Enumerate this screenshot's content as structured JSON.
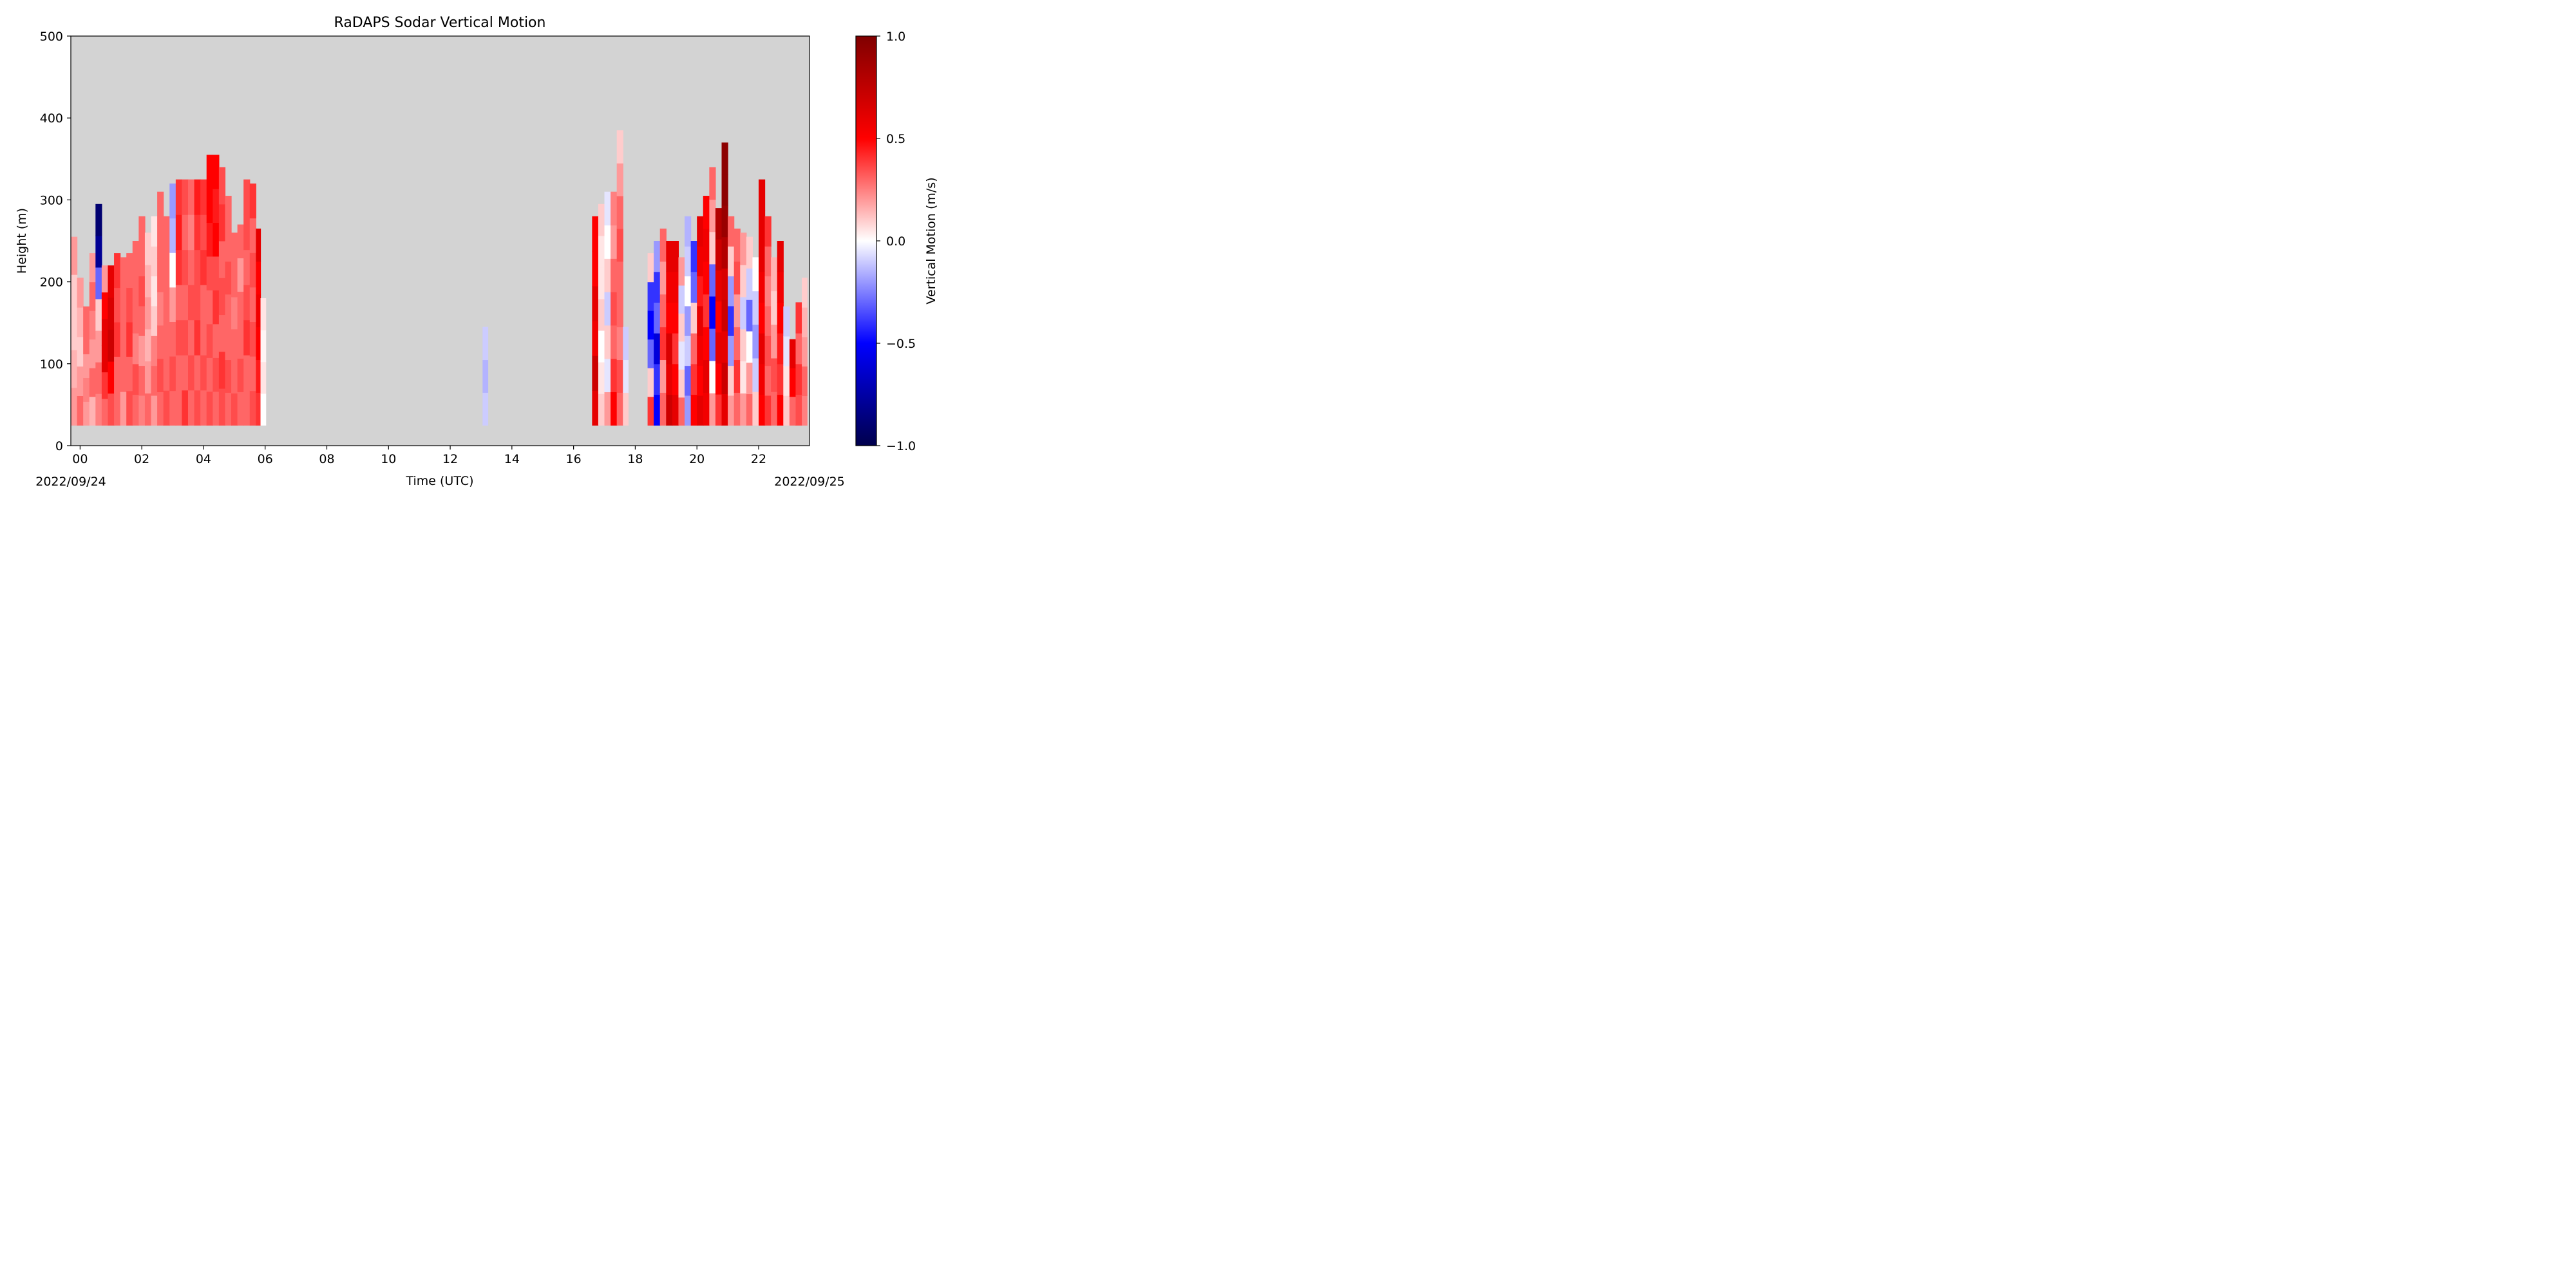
{
  "chart_data": {
    "type": "heatmap",
    "title": "RaDAPS Sodar Vertical Motion",
    "xlabel": "Time (UTC)",
    "ylabel": "Height (m)",
    "xlim_hours": [
      -0.3,
      23.65
    ],
    "ylim": [
      0,
      500
    ],
    "x_ticks": [
      {
        "value": 0,
        "label": "00"
      },
      {
        "value": 2,
        "label": "02"
      },
      {
        "value": 4,
        "label": "04"
      },
      {
        "value": 6,
        "label": "06"
      },
      {
        "value": 8,
        "label": "08"
      },
      {
        "value": 10,
        "label": "10"
      },
      {
        "value": 12,
        "label": "12"
      },
      {
        "value": 14,
        "label": "14"
      },
      {
        "value": 16,
        "label": "16"
      },
      {
        "value": 18,
        "label": "18"
      },
      {
        "value": 20,
        "label": "20"
      },
      {
        "value": 22,
        "label": "22"
      }
    ],
    "y_ticks": [
      0,
      100,
      200,
      300,
      400,
      500
    ],
    "date_labels": {
      "start": "2022/09/24",
      "end": "2022/09/25"
    },
    "background_color": "#d3d3d3",
    "colormap": "seismic",
    "colorbar": {
      "label": "Vertical Motion (m/s)",
      "min": -1.0,
      "max": 1.0,
      "ticks": [
        {
          "value": -1.0,
          "label": "−1.0"
        },
        {
          "value": -0.5,
          "label": "−0.5"
        },
        {
          "value": 0.0,
          "label": "0.0"
        },
        {
          "value": 0.5,
          "label": "0.5"
        },
        {
          "value": 1.0,
          "label": "1.0"
        }
      ]
    },
    "columns": [
      {
        "t": -0.3,
        "top": 255,
        "v": [
          0.2,
          0.15,
          0.1,
          0.1,
          0.2
        ]
      },
      {
        "t": -0.1,
        "top": 205,
        "v": [
          0.3,
          0.2,
          0.1,
          0.15,
          0.2
        ]
      },
      {
        "t": 0.1,
        "top": 170,
        "v": [
          0.2,
          0.25,
          0.2,
          0.3,
          0.3
        ]
      },
      {
        "t": 0.3,
        "top": 235,
        "v": [
          0.15,
          0.3,
          0.2,
          0.25,
          0.3,
          0.2
        ]
      },
      {
        "t": 0.5,
        "top": 295,
        "v": [
          0.25,
          0.3,
          0.2,
          0.1,
          -0.3,
          -0.8,
          -0.9
        ]
      },
      {
        "t": 0.7,
        "top": 220,
        "v": [
          0.3,
          0.4,
          0.6,
          0.6,
          0.5,
          0.2
        ]
      },
      {
        "t": 0.9,
        "top": 220,
        "v": [
          0.35,
          0.5,
          0.7,
          0.65,
          0.6
        ]
      },
      {
        "t": 1.1,
        "top": 235,
        "v": [
          0.3,
          0.3,
          0.4,
          0.35,
          0.4
        ]
      },
      {
        "t": 1.3,
        "top": 230,
        "v": [
          0.2,
          0.3,
          0.3,
          0.3,
          0.3
        ]
      },
      {
        "t": 1.5,
        "top": 235,
        "v": [
          0.35,
          0.3,
          0.4,
          0.35,
          0.3
        ]
      },
      {
        "t": 1.7,
        "top": 250,
        "v": [
          0.3,
          0.35,
          0.25,
          0.3,
          0.3,
          0.3
        ]
      },
      {
        "t": 1.9,
        "top": 280,
        "v": [
          0.25,
          0.3,
          0.2,
          0.3,
          0.35,
          0.3,
          0.3
        ]
      },
      {
        "t": 2.1,
        "top": 260,
        "v": [
          0.3,
          0.2,
          0.15,
          0.2,
          0.15,
          0.1
        ]
      },
      {
        "t": 2.3,
        "top": 280,
        "v": [
          0.2,
          0.3,
          0.25,
          0.1,
          0.05,
          0.1,
          0.05
        ]
      },
      {
        "t": 2.5,
        "top": 310,
        "v": [
          0.3,
          0.35,
          0.3,
          0.25,
          0.3,
          0.3,
          0.3
        ]
      },
      {
        "t": 2.7,
        "top": 280,
        "v": [
          0.35,
          0.3,
          0.3,
          0.3,
          0.3,
          0.3
        ]
      },
      {
        "t": 2.9,
        "top": 320,
        "v": [
          0.3,
          0.35,
          0.3,
          0.2,
          0.0,
          -0.15,
          -0.2
        ]
      },
      {
        "t": 3.1,
        "top": 325,
        "v": [
          0.3,
          0.3,
          0.35,
          0.3,
          0.4,
          0.45,
          0.4
        ]
      },
      {
        "t": 3.3,
        "top": 325,
        "v": [
          0.4,
          0.3,
          0.35,
          0.3,
          0.35,
          0.3,
          0.35
        ]
      },
      {
        "t": 3.5,
        "top": 325,
        "v": [
          0.3,
          0.35,
          0.3,
          0.35,
          0.3,
          0.25,
          0.3
        ]
      },
      {
        "t": 3.7,
        "top": 325,
        "v": [
          0.35,
          0.3,
          0.4,
          0.35,
          0.35,
          0.4,
          0.45
        ]
      },
      {
        "t": 3.9,
        "top": 325,
        "v": [
          0.3,
          0.35,
          0.3,
          0.3,
          0.4,
          0.35,
          0.4
        ]
      },
      {
        "t": 4.1,
        "top": 355,
        "v": [
          0.35,
          0.3,
          0.35,
          0.3,
          0.35,
          0.45,
          0.5,
          0.5
        ]
      },
      {
        "t": 4.3,
        "top": 355,
        "v": [
          0.3,
          0.35,
          0.3,
          0.4,
          0.35,
          0.5,
          0.45,
          0.5
        ]
      },
      {
        "t": 4.5,
        "top": 340,
        "v": [
          0.35,
          0.4,
          0.3,
          0.35,
          0.3,
          0.4,
          0.35
        ]
      },
      {
        "t": 4.7,
        "top": 305,
        "v": [
          0.3,
          0.35,
          0.3,
          0.3,
          0.35,
          0.3,
          0.3
        ]
      },
      {
        "t": 4.9,
        "top": 260,
        "v": [
          0.35,
          0.3,
          0.3,
          0.25,
          0.3,
          0.3
        ]
      },
      {
        "t": 5.1,
        "top": 270,
        "v": [
          0.3,
          0.35,
          0.3,
          0.3,
          0.2,
          0.3
        ]
      },
      {
        "t": 5.3,
        "top": 325,
        "v": [
          0.3,
          0.3,
          0.4,
          0.35,
          0.3,
          0.35,
          0.35
        ]
      },
      {
        "t": 5.5,
        "top": 320,
        "v": [
          0.35,
          0.3,
          0.35,
          0.3,
          0.35,
          0.3,
          0.4
        ]
      },
      {
        "t": 5.7,
        "top": 265,
        "v": [
          0.4,
          0.45,
          0.5,
          0.55,
          0.5,
          0.6
        ]
      },
      {
        "t": 5.85,
        "top": 180,
        "v": [
          0.0,
          0.05,
          0.02,
          0.05
        ]
      },
      {
        "t": 13.05,
        "top": 145,
        "v": [
          -0.1,
          -0.15,
          -0.1
        ]
      },
      {
        "t": 16.6,
        "top": 280,
        "v": [
          0.6,
          0.7,
          0.55,
          0.6,
          0.5,
          0.5
        ]
      },
      {
        "t": 16.8,
        "top": 295,
        "v": [
          0.1,
          0.05,
          0.0,
          0.1,
          0.05,
          0.05,
          0.1
        ]
      },
      {
        "t": 17.0,
        "top": 310,
        "v": [
          0.2,
          -0.05,
          0.1,
          -0.1,
          0.1,
          0.0,
          -0.05
        ]
      },
      {
        "t": 17.2,
        "top": 310,
        "v": [
          0.5,
          0.4,
          0.3,
          0.35,
          0.3,
          0.2,
          0.25
        ]
      },
      {
        "t": 17.4,
        "top": 385,
        "v": [
          0.3,
          0.35,
          0.25,
          0.3,
          0.3,
          0.35,
          0.3,
          0.2,
          0.1
        ]
      },
      {
        "t": 17.6,
        "top": 145,
        "v": [
          0.1,
          -0.05,
          -0.1
        ]
      },
      {
        "t": 18.4,
        "top": 235,
        "v": [
          0.4,
          0.1,
          -0.3,
          -0.5,
          -0.4,
          0.1
        ]
      },
      {
        "t": 18.6,
        "top": 250,
        "v": [
          -0.5,
          -0.4,
          -0.6,
          -0.3,
          -0.4,
          -0.2
        ]
      },
      {
        "t": 18.8,
        "top": 265,
        "v": [
          0.3,
          0.2,
          0.4,
          0.3,
          0.2,
          0.3
        ]
      },
      {
        "t": 19.0,
        "top": 250,
        "v": [
          0.7,
          0.6,
          0.65,
          0.5,
          0.55,
          0.6
        ]
      },
      {
        "t": 19.2,
        "top": 250,
        "v": [
          0.6,
          0.5,
          0.4,
          0.5,
          0.55,
          0.6
        ]
      },
      {
        "t": 19.4,
        "top": 230,
        "v": [
          0.3,
          0.1,
          -0.05,
          0.1,
          -0.1,
          0.2
        ]
      },
      {
        "t": 19.6,
        "top": 280,
        "v": [
          -0.2,
          -0.3,
          -0.1,
          -0.2,
          0.0,
          -0.1,
          -0.15
        ]
      },
      {
        "t": 19.8,
        "top": 250,
        "v": [
          0.5,
          0.4,
          0.3,
          0.1,
          -0.3,
          -0.4
        ]
      },
      {
        "t": 20.0,
        "top": 280,
        "v": [
          0.6,
          0.5,
          0.55,
          0.6,
          0.45,
          0.55,
          0.6
        ]
      },
      {
        "t": 20.2,
        "top": 305,
        "v": [
          0.55,
          0.6,
          0.5,
          0.4,
          0.5,
          0.55,
          0.5
        ]
      },
      {
        "t": 20.4,
        "top": 340,
        "v": [
          0.2,
          0.0,
          -0.3,
          -0.5,
          -0.3,
          0.1,
          0.2,
          0.3
        ]
      },
      {
        "t": 20.6,
        "top": 290,
        "v": [
          0.4,
          0.5,
          0.6,
          0.5,
          0.6,
          0.7,
          0.8
        ]
      },
      {
        "t": 20.8,
        "top": 370,
        "v": [
          0.6,
          0.7,
          0.6,
          0.7,
          0.65,
          0.8,
          0.9,
          0.95,
          0.95
        ]
      },
      {
        "t": 21.0,
        "top": 280,
        "v": [
          0.2,
          0.1,
          -0.2,
          -0.4,
          -0.2,
          0.1,
          0.3
        ]
      },
      {
        "t": 21.2,
        "top": 265,
        "v": [
          0.3,
          0.4,
          0.3,
          0.2,
          0.35,
          0.3
        ]
      },
      {
        "t": 21.4,
        "top": 260,
        "v": [
          0.2,
          0.05,
          0.1,
          -0.1,
          0.1,
          0.2
        ]
      },
      {
        "t": 21.6,
        "top": 255,
        "v": [
          0.3,
          0.2,
          0.0,
          -0.3,
          -0.1,
          0.1
        ]
      },
      {
        "t": 21.8,
        "top": 230,
        "v": [
          0.1,
          -0.1,
          -0.2,
          -0.1,
          0.0
        ]
      },
      {
        "t": 22.0,
        "top": 325,
        "v": [
          0.5,
          0.55,
          0.6,
          0.5,
          0.55,
          0.6,
          0.6,
          0.6
        ]
      },
      {
        "t": 22.2,
        "top": 280,
        "v": [
          0.4,
          0.3,
          0.35,
          0.3,
          0.25,
          0.3,
          0.4
        ]
      },
      {
        "t": 22.4,
        "top": 230,
        "v": [
          0.3,
          0.35,
          0.2,
          0.1,
          0.15
        ]
      },
      {
        "t": 22.6,
        "top": 250,
        "v": [
          0.5,
          0.4,
          0.45,
          0.5,
          0.55,
          0.6
        ]
      },
      {
        "t": 22.8,
        "top": 170,
        "v": [
          0.1,
          0.05,
          -0.05,
          -0.1
        ]
      },
      {
        "t": 23.0,
        "top": 130,
        "v": [
          0.3,
          0.5,
          0.6
        ]
      },
      {
        "t": 23.2,
        "top": 175,
        "v": [
          0.35,
          0.4,
          0.3,
          0.4
        ]
      },
      {
        "t": 23.4,
        "top": 205,
        "v": [
          0.25,
          0.3,
          0.2,
          0.15,
          0.1
        ]
      }
    ]
  }
}
